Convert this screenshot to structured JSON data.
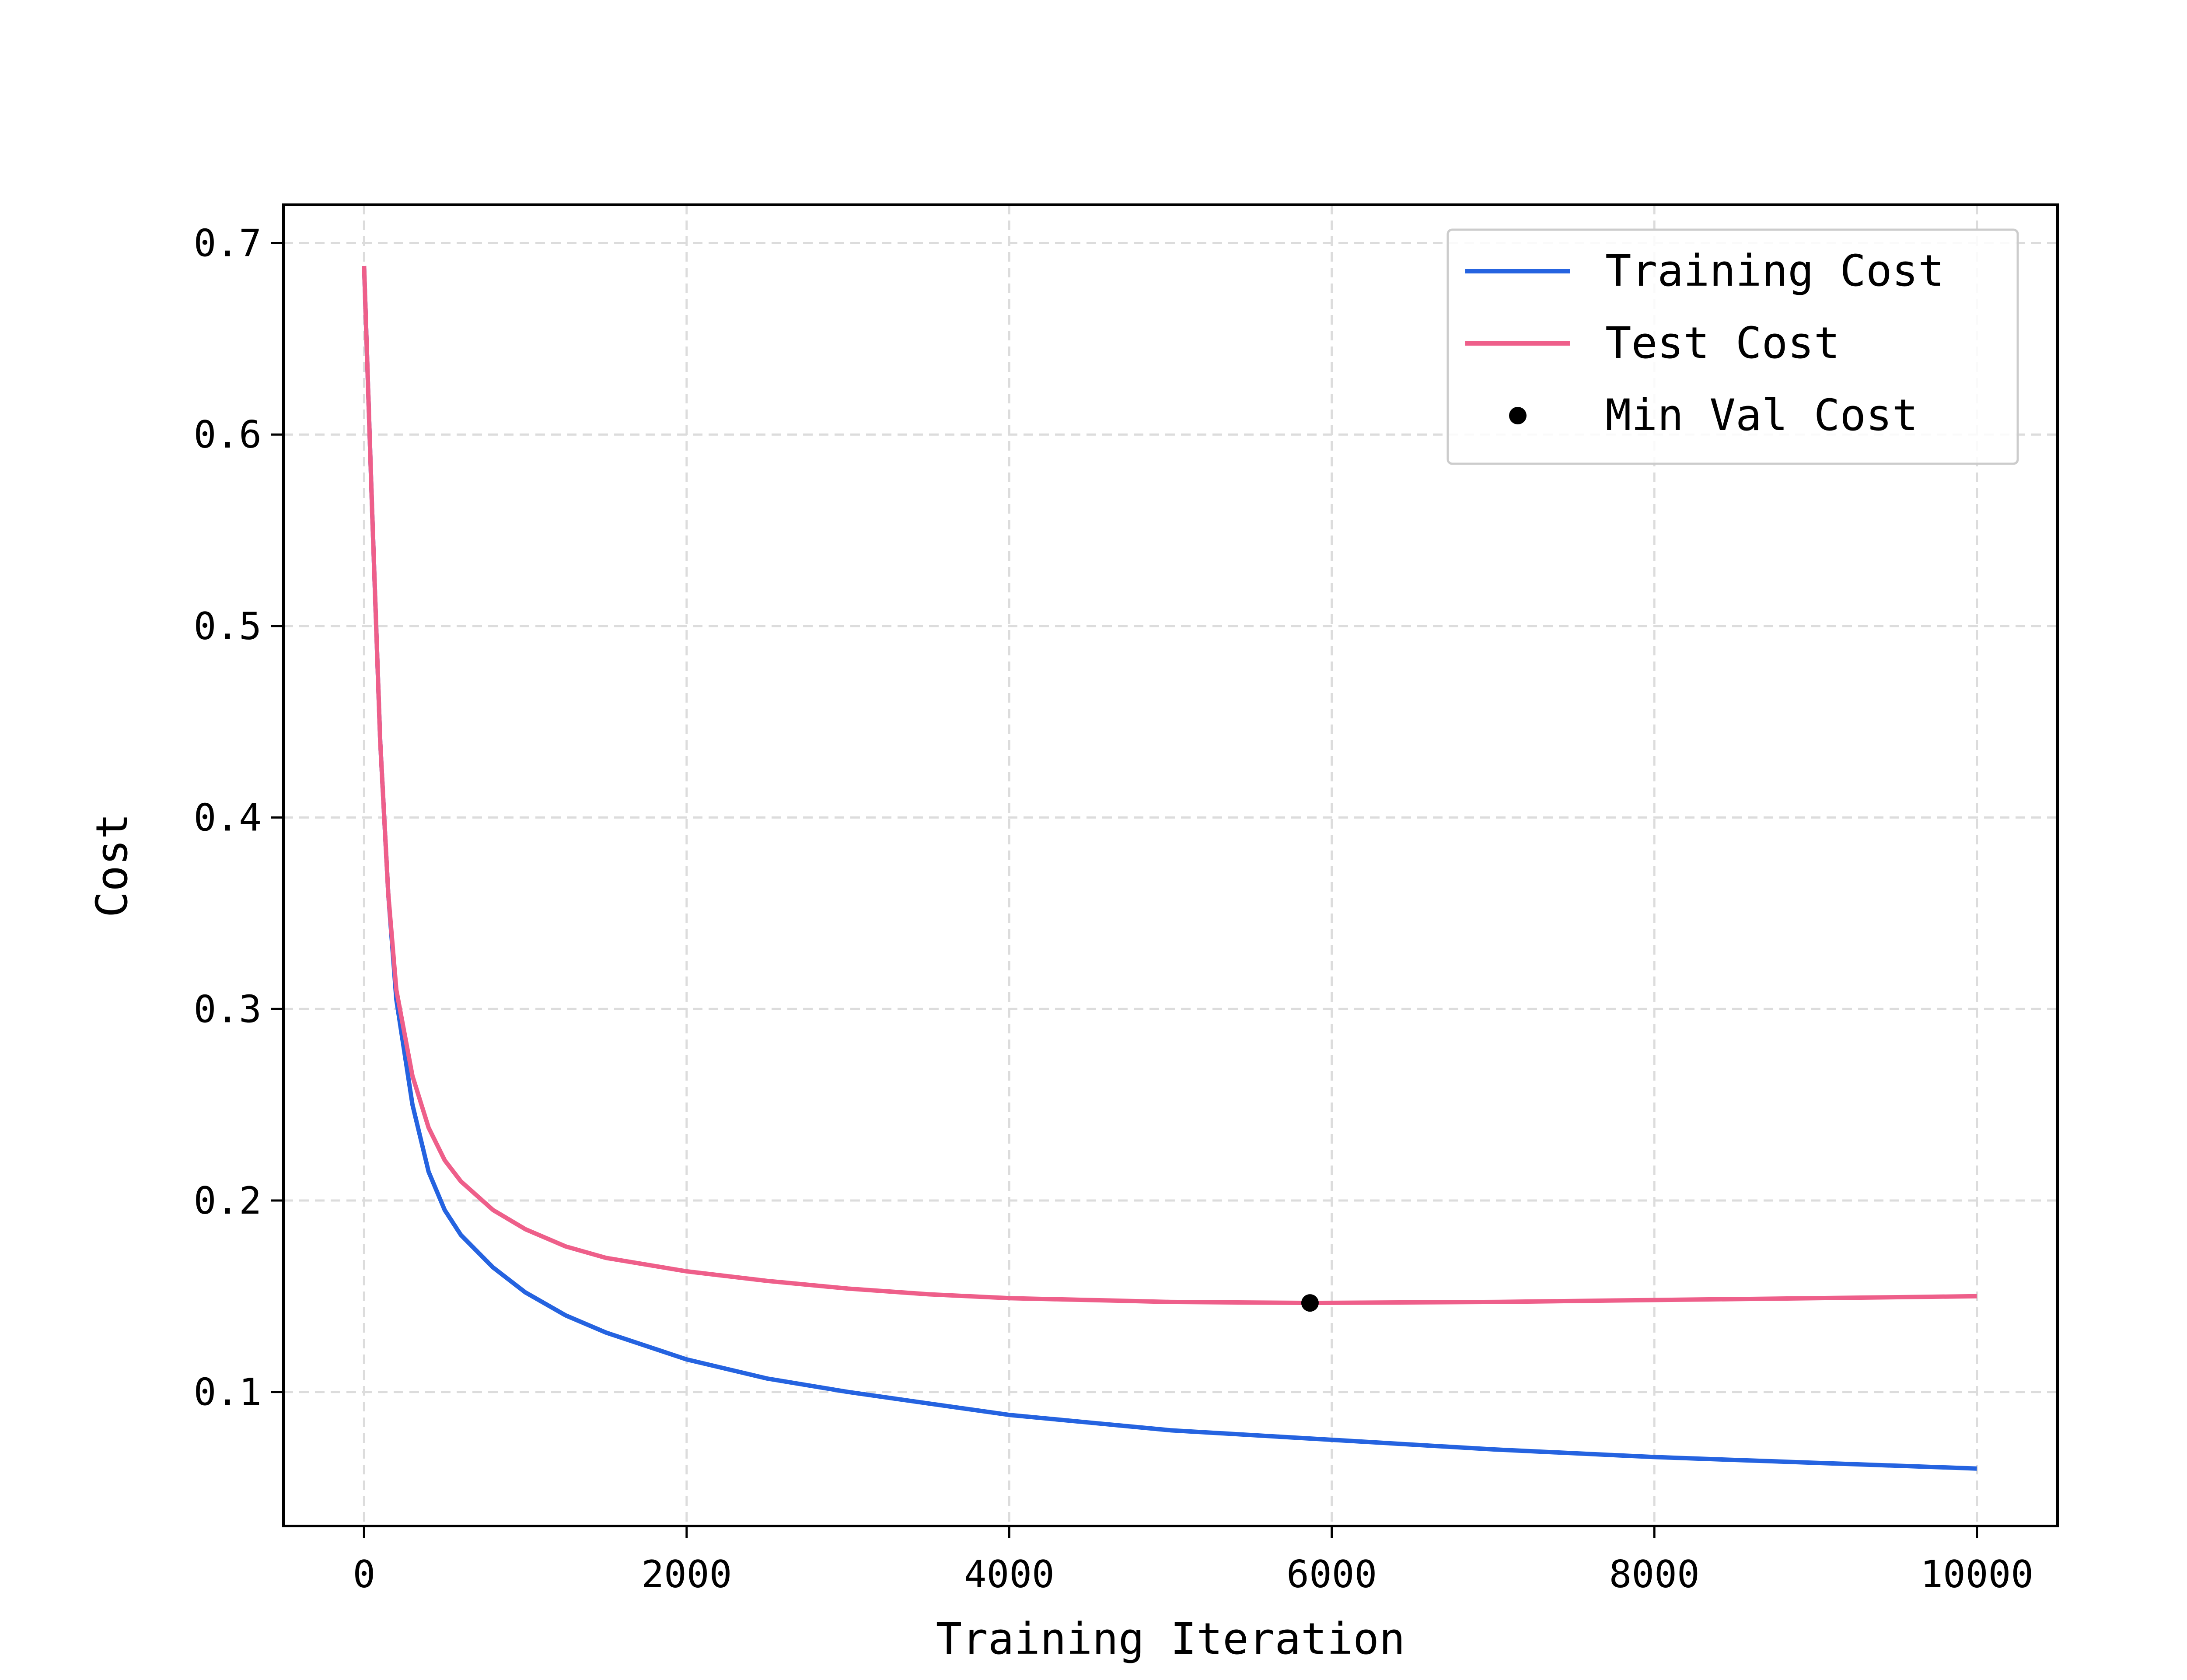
{
  "chart_data": {
    "type": "line",
    "title": "",
    "xlabel": "Training Iteration",
    "ylabel": "Cost",
    "xlim": [
      -500,
      10500
    ],
    "ylim": [
      0.03,
      0.72
    ],
    "x_ticks": [
      0,
      2000,
      4000,
      6000,
      8000,
      10000
    ],
    "x_tick_labels": [
      "0",
      "2000",
      "4000",
      "6000",
      "8000",
      "10000"
    ],
    "y_ticks": [
      0.1,
      0.2,
      0.3,
      0.4,
      0.5,
      0.6,
      0.7
    ],
    "y_tick_labels": [
      "0.1",
      "0.2",
      "0.3",
      "0.4",
      "0.5",
      "0.6",
      "0.7"
    ],
    "grid": true,
    "legend_position": "top-right",
    "series": [
      {
        "name": "Training Cost",
        "color": "#2563e0",
        "x": [
          0,
          50,
          100,
          150,
          200,
          300,
          400,
          500,
          600,
          800,
          1000,
          1250,
          1500,
          2000,
          2500,
          3000,
          3500,
          4000,
          4500,
          5000,
          6000,
          7000,
          8000,
          9000,
          10000
        ],
        "y": [
          0.688,
          0.56,
          0.44,
          0.36,
          0.305,
          0.25,
          0.215,
          0.195,
          0.182,
          0.165,
          0.152,
          0.14,
          0.131,
          0.117,
          0.107,
          0.1,
          0.094,
          0.088,
          0.084,
          0.08,
          0.075,
          0.07,
          0.066,
          0.063,
          0.06
        ]
      },
      {
        "name": "Test Cost",
        "color": "#ee5f8a",
        "x": [
          0,
          50,
          100,
          150,
          200,
          300,
          400,
          500,
          600,
          800,
          1000,
          1250,
          1500,
          2000,
          2500,
          3000,
          3500,
          4000,
          4500,
          5000,
          5865,
          7000,
          8000,
          9000,
          10000
        ],
        "y": [
          0.688,
          0.56,
          0.44,
          0.36,
          0.31,
          0.265,
          0.238,
          0.221,
          0.21,
          0.195,
          0.185,
          0.176,
          0.17,
          0.163,
          0.158,
          0.154,
          0.151,
          0.149,
          0.148,
          0.147,
          0.1465,
          0.147,
          0.148,
          0.149,
          0.15
        ]
      }
    ],
    "points": [
      {
        "name": "Min Val Cost",
        "x": 5865,
        "y": 0.1465,
        "color": "#000000"
      }
    ]
  }
}
